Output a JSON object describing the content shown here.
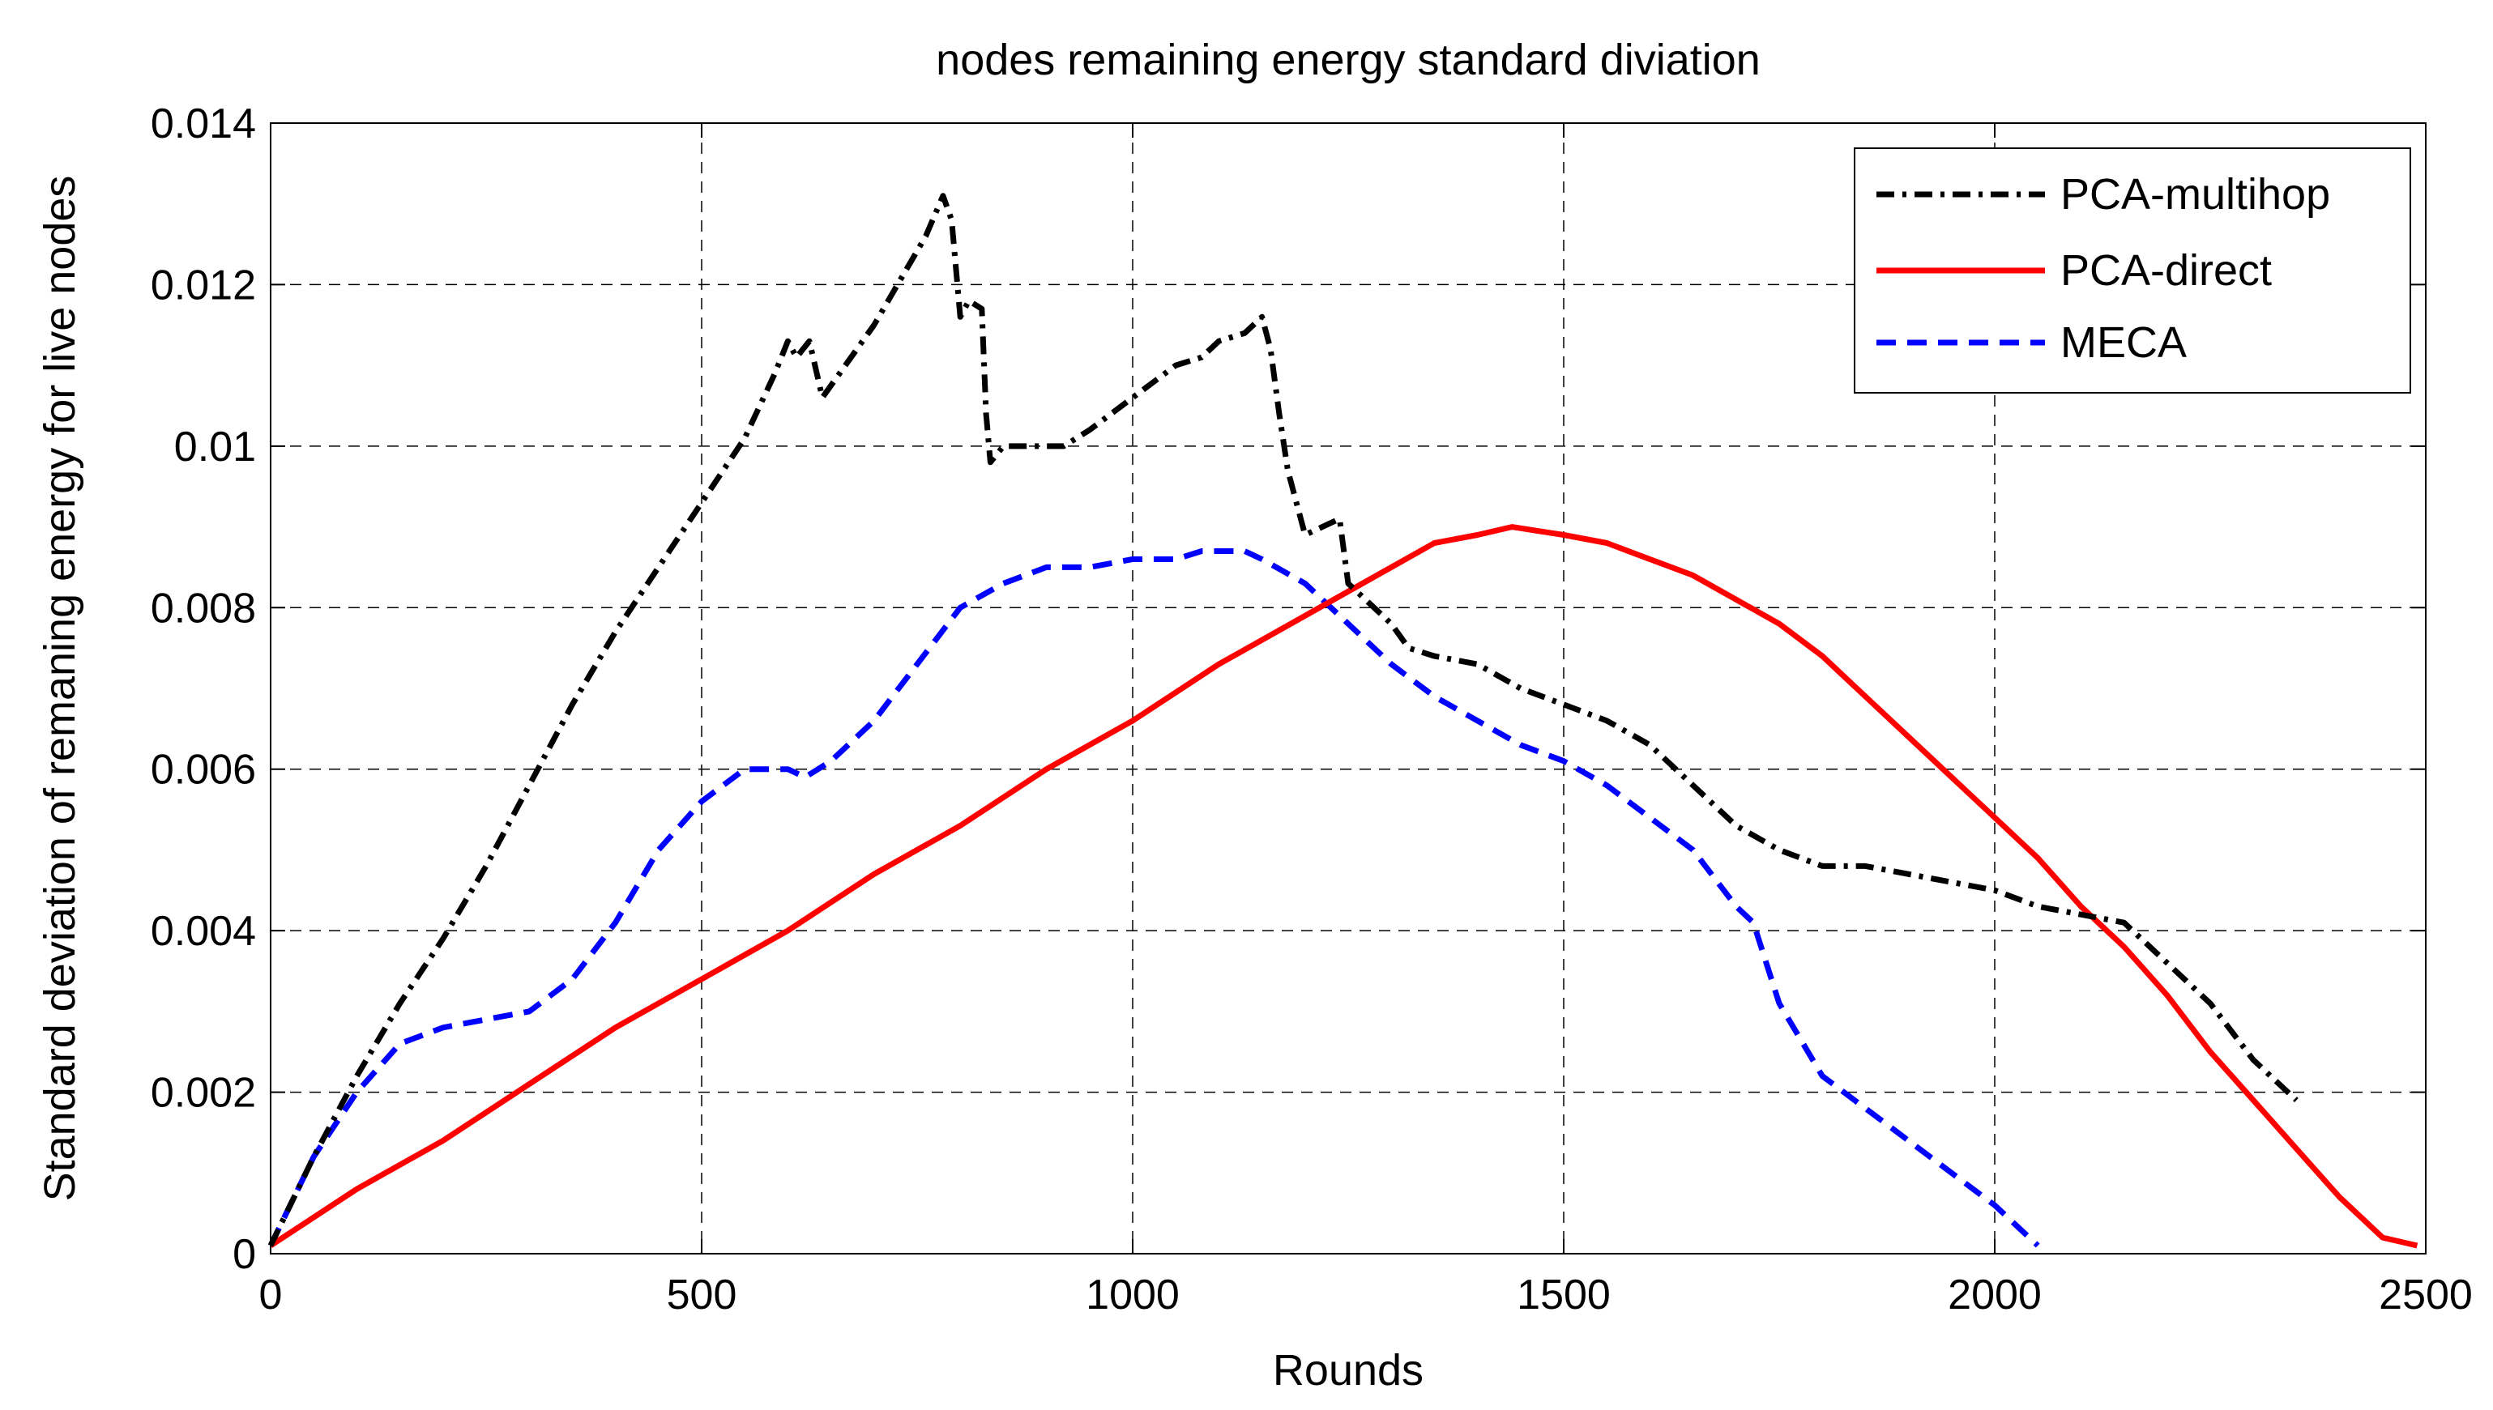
{
  "chart_data": {
    "type": "line",
    "title": "nodes remaining energy standard diviation",
    "xlabel": "Rounds",
    "ylabel": "Standard deviation of remaning energy for live nodes",
    "xlim": [
      0,
      2500
    ],
    "ylim": [
      0,
      0.014
    ],
    "x_ticks": [
      0,
      500,
      1000,
      1500,
      2000,
      2500
    ],
    "x_tick_labels": [
      "0",
      "500",
      "1000",
      "1500",
      "2000",
      "2500"
    ],
    "y_ticks": [
      0,
      0.002,
      0.004,
      0.006,
      0.008,
      0.01,
      0.012,
      0.014
    ],
    "y_tick_labels": [
      "0",
      "0.002",
      "0.004",
      "0.006",
      "0.008",
      "0.01",
      "0.012",
      "0.014"
    ],
    "grid": true,
    "legend_position": "top-right",
    "series": [
      {
        "name": "PCA-multihop",
        "color": "#000000",
        "dash": "dash-dot",
        "x": [
          0,
          50,
          100,
          150,
          200,
          250,
          300,
          350,
          400,
          450,
          500,
          550,
          585,
          600,
          610,
          625,
          640,
          700,
          760,
          780,
          790,
          800,
          810,
          825,
          830,
          835,
          850,
          880,
          920,
          950,
          1000,
          1050,
          1080,
          1100,
          1130,
          1150,
          1160,
          1170,
          1180,
          1200,
          1220,
          1240,
          1250,
          1270,
          1300,
          1320,
          1350,
          1400,
          1450,
          1500,
          1550,
          1600,
          1650,
          1700,
          1750,
          1800,
          1850,
          1900,
          1950,
          2000,
          2050,
          2100,
          2150,
          2200,
          2250,
          2300,
          2350
        ],
        "values": [
          0.0001,
          0.0012,
          0.0022,
          0.0031,
          0.0039,
          0.0048,
          0.0058,
          0.0068,
          0.0077,
          0.0085,
          0.0093,
          0.0101,
          0.0109,
          0.0113,
          0.0111,
          0.0113,
          0.0106,
          0.0115,
          0.0126,
          0.0131,
          0.0128,
          0.0116,
          0.0118,
          0.0117,
          0.0104,
          0.0098,
          0.01,
          0.01,
          0.01,
          0.0102,
          0.0106,
          0.011,
          0.0111,
          0.0113,
          0.0114,
          0.0116,
          0.0112,
          0.0104,
          0.0097,
          0.0089,
          0.009,
          0.0091,
          0.0083,
          0.0081,
          0.0078,
          0.0075,
          0.0074,
          0.0073,
          0.007,
          0.0068,
          0.0066,
          0.0063,
          0.0058,
          0.0053,
          0.005,
          0.0048,
          0.0048,
          0.0047,
          0.0046,
          0.0045,
          0.0043,
          0.0042,
          0.0041,
          0.0036,
          0.0031,
          0.0024,
          0.0019
        ]
      },
      {
        "name": "PCA-direct",
        "color": "#ff0000",
        "dash": "solid",
        "x": [
          0,
          100,
          200,
          300,
          400,
          500,
          600,
          700,
          800,
          900,
          1000,
          1100,
          1200,
          1250,
          1300,
          1350,
          1400,
          1440,
          1500,
          1550,
          1600,
          1650,
          1700,
          1750,
          1800,
          1850,
          1900,
          1950,
          2000,
          2050,
          2100,
          2150,
          2200,
          2250,
          2300,
          2350,
          2400,
          2450,
          2490
        ],
        "values": [
          0.0001,
          0.0008,
          0.0014,
          0.0021,
          0.0028,
          0.0034,
          0.004,
          0.0047,
          0.0053,
          0.006,
          0.0066,
          0.0073,
          0.0079,
          0.0082,
          0.0085,
          0.0088,
          0.0089,
          0.009,
          0.0089,
          0.0088,
          0.0086,
          0.0084,
          0.0081,
          0.0078,
          0.0074,
          0.0069,
          0.0064,
          0.0059,
          0.0054,
          0.0049,
          0.0043,
          0.0038,
          0.0032,
          0.0025,
          0.0019,
          0.0013,
          0.0007,
          0.0002,
          0.0001
        ]
      },
      {
        "name": "MECA",
        "color": "#0000ff",
        "dash": "dashed",
        "x": [
          0,
          50,
          100,
          150,
          200,
          250,
          300,
          350,
          400,
          450,
          500,
          550,
          580,
          600,
          620,
          650,
          700,
          750,
          800,
          850,
          900,
          950,
          1000,
          1050,
          1080,
          1100,
          1130,
          1150,
          1200,
          1250,
          1300,
          1350,
          1400,
          1450,
          1500,
          1550,
          1600,
          1650,
          1700,
          1720,
          1750,
          1800,
          1850,
          1900,
          1950,
          2000,
          2050
        ],
        "values": [
          0.0001,
          0.0012,
          0.002,
          0.0026,
          0.0028,
          0.0029,
          0.003,
          0.0034,
          0.0041,
          0.005,
          0.0056,
          0.006,
          0.006,
          0.006,
          0.0059,
          0.0061,
          0.0066,
          0.0073,
          0.008,
          0.0083,
          0.0085,
          0.0085,
          0.0086,
          0.0086,
          0.0087,
          0.0087,
          0.0087,
          0.0086,
          0.0083,
          0.0078,
          0.0073,
          0.0069,
          0.0066,
          0.0063,
          0.0061,
          0.0058,
          0.0054,
          0.005,
          0.0043,
          0.0041,
          0.0031,
          0.0022,
          0.0018,
          0.0014,
          0.001,
          0.0006,
          0.0001
        ]
      }
    ]
  }
}
